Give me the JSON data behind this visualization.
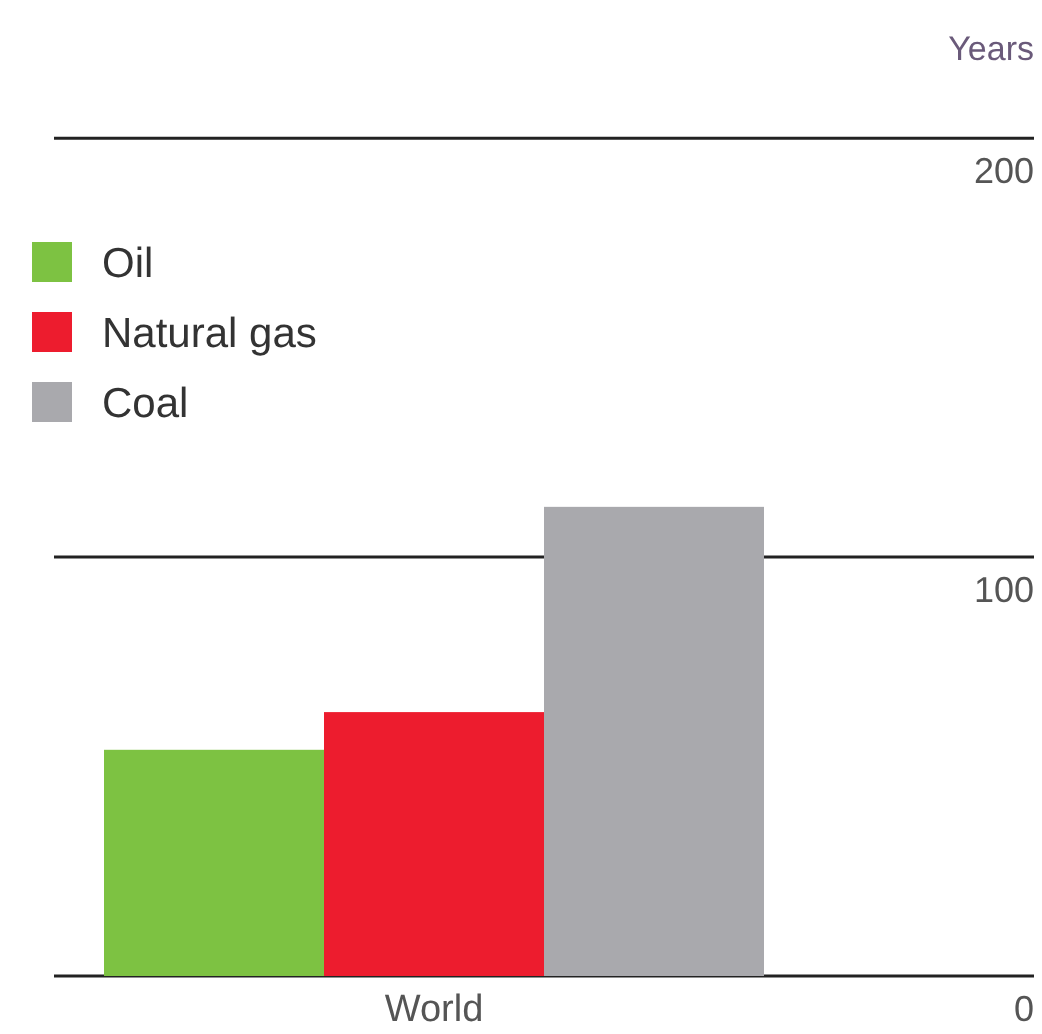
{
  "chart_data": {
    "type": "bar",
    "ylabel": "Years",
    "categories": [
      "World"
    ],
    "series": [
      {
        "name": "Oil",
        "color": "#7dc242",
        "values": [
          54
        ]
      },
      {
        "name": "Natural gas",
        "color": "#ed1c2e",
        "values": [
          63
        ]
      },
      {
        "name": "Coal",
        "color": "#a9a9ad",
        "values": [
          112
        ]
      }
    ],
    "ylim": [
      0,
      233
    ],
    "yticks": [
      0,
      100,
      200
    ],
    "grid": "y",
    "legend": "top left"
  }
}
